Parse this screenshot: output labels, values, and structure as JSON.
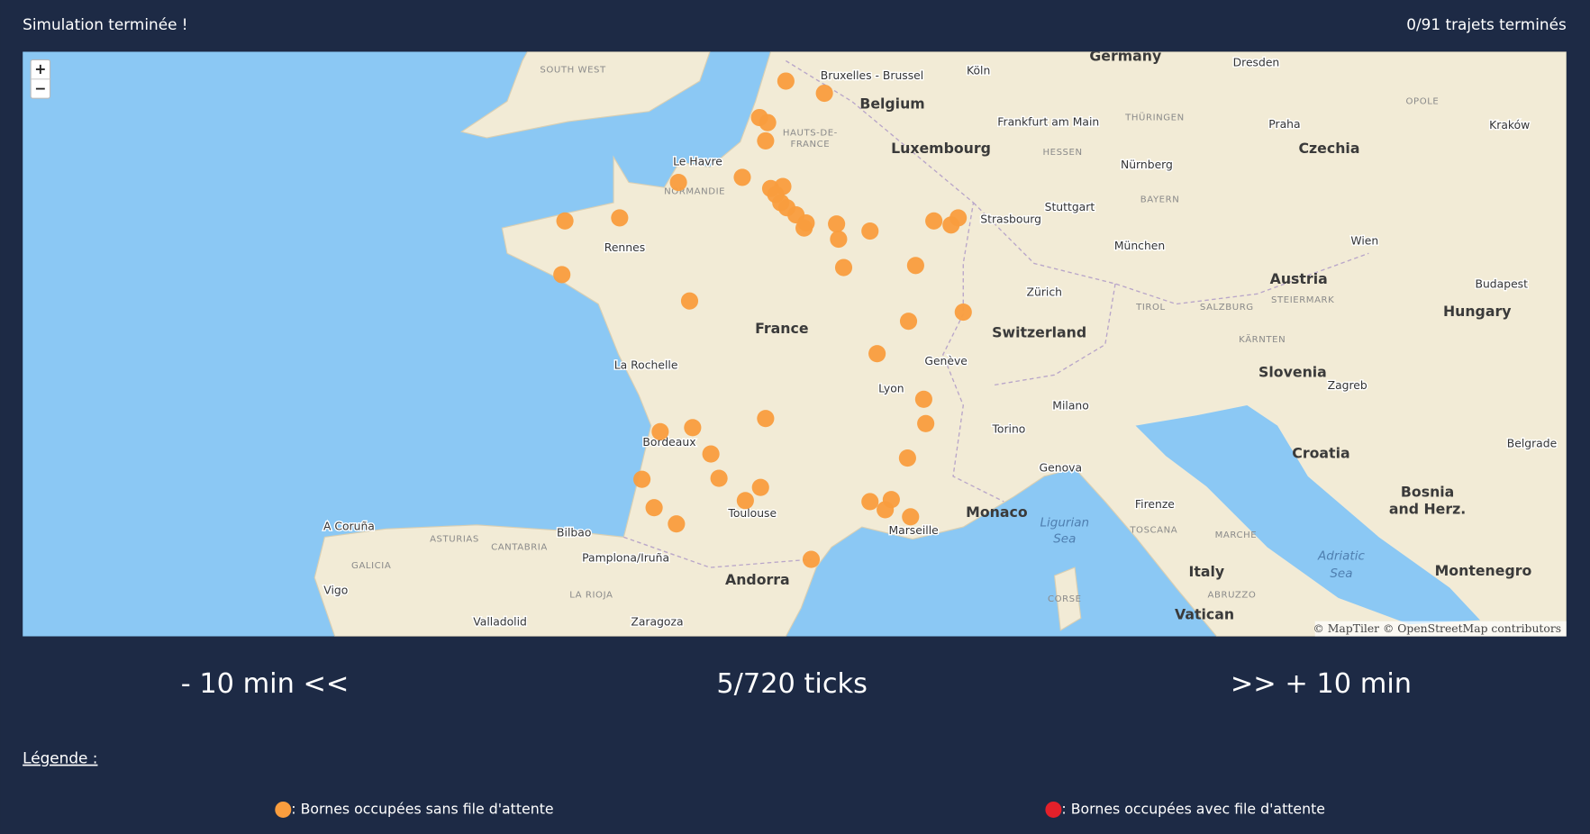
{
  "header": {
    "status": "Simulation terminée !",
    "progress": "0/91 trajets terminés"
  },
  "map": {
    "zoom_in": "+",
    "zoom_out": "−",
    "attribution": "© MapTiler © OpenStreetMap contributors",
    "countries": [
      "Germany",
      "Belgium",
      "Luxembourg",
      "France",
      "Switzerland",
      "Austria",
      "Czechia",
      "Hungary",
      "Slovenia",
      "Croatia",
      "Bosnia",
      "and Herz.",
      "Montenegro",
      "Italy",
      "Monaco",
      "Andorra",
      "Vatican"
    ],
    "cities": [
      "Bruxelles - Brussel",
      "Köln",
      "Frankfurt am Main",
      "Dresden",
      "Praha",
      "Nürnberg",
      "Stuttgart",
      "Strasbourg",
      "München",
      "Wien",
      "Budapest",
      "Zürich",
      "Genève",
      "Lyon",
      "Milano",
      "Torino",
      "Genova",
      "Zagreb",
      "Belgrade",
      "Firenze",
      "Marseille",
      "Toulouse",
      "Bordeaux",
      "La Rochelle",
      "Rennes",
      "Le Havre",
      "Bilbao",
      "Pamplona/Iruña",
      "Zaragoza",
      "Valladolid",
      "A Coruña",
      "Vigo",
      "Kraków"
    ],
    "seas": [
      "Ligurian",
      "Sea",
      "Adriatic",
      "Sea"
    ],
    "regions": [
      "SOUTH WEST",
      "NORMANDIE",
      "HAUTS-DE-",
      "FRANCE",
      "BAYERN",
      "HESSEN",
      "THÜRINGEN",
      "GALICIA",
      "ASTURIAS",
      "CANTABRIA",
      "LA RIOJA",
      "TOSCANA",
      "MARCHE",
      "ABRUZZO",
      "CORSE",
      "TIROL",
      "SALZBURG",
      "STEIERMARK",
      "KÄRNTEN",
      "OPOLE"
    ]
  },
  "controls": {
    "back": "- 10 min <<",
    "ticks": "5/720 ticks",
    "forward": ">> + 10 min"
  },
  "legend": {
    "title": "Légende :",
    "items": [
      {
        "label": ": Bornes occupées sans file d'attente",
        "color": "#f99d3e"
      },
      {
        "label": ": Bornes occupées avec file d'attente",
        "color": "#e3202a"
      }
    ]
  }
}
